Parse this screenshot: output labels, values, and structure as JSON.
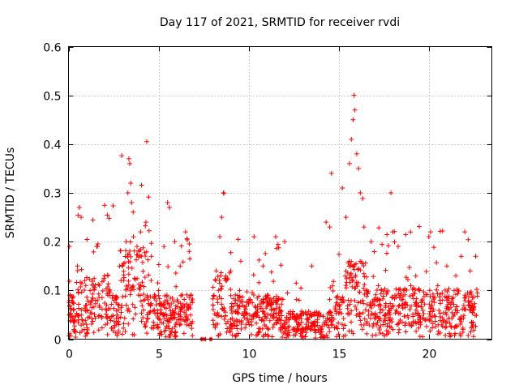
{
  "chart_data": {
    "type": "scatter",
    "title": "Day 117 of 2021, SRMTID for receiver rvdi",
    "xlabel": "GPS time / hours",
    "ylabel": "SRMTID / TECUs",
    "xlim": [
      0,
      23.5
    ],
    "ylim": [
      0,
      0.6
    ],
    "xticks": [
      0,
      5,
      10,
      15,
      20
    ],
    "xtick_labels": [
      "0",
      "5",
      "10",
      "15",
      "20"
    ],
    "yticks": [
      0,
      0.1,
      0.2,
      0.3,
      0.4,
      0.5,
      0.6
    ],
    "ytick_labels": [
      "0",
      "0.1",
      "0.2",
      "0.3",
      "0.4",
      "0.5",
      "0.6"
    ],
    "grid": true,
    "marker": "+",
    "series": [
      {
        "name": "SRMTID",
        "color": "#ff0000",
        "description": "Dense cloud of samples roughly 0 to 0.15 TECU across the day; gap between about 6.9 h and 7.9 h with only zero values; peaks near 3.4 h (~0.37) and 15.8 h (~0.50).",
        "points": [
          [
            0.05,
            0.19
          ],
          [
            0.15,
            0.06
          ],
          [
            0.3,
            0.02
          ],
          [
            0.5,
            0.15
          ],
          [
            0.6,
            0.27
          ],
          [
            0.7,
            0.25
          ],
          [
            0.9,
            0.12
          ],
          [
            1.2,
            0.1
          ],
          [
            1.5,
            0.08
          ],
          [
            1.6,
            0.19
          ],
          [
            2.0,
            0.13
          ],
          [
            2.3,
            0.09
          ],
          [
            2.8,
            0.07
          ],
          [
            3.0,
            0.15
          ],
          [
            3.2,
            0.2
          ],
          [
            3.3,
            0.3
          ],
          [
            3.35,
            0.37
          ],
          [
            3.4,
            0.36
          ],
          [
            3.45,
            0.32
          ],
          [
            3.5,
            0.28
          ],
          [
            3.6,
            0.21
          ],
          [
            3.8,
            0.19
          ],
          [
            4.0,
            0.22
          ],
          [
            4.3,
            0.24
          ],
          [
            4.6,
            0.17
          ],
          [
            5.0,
            0.1
          ],
          [
            5.3,
            0.19
          ],
          [
            5.5,
            0.28
          ],
          [
            5.6,
            0.27
          ],
          [
            5.9,
            0.2
          ],
          [
            6.2,
            0.15
          ],
          [
            6.5,
            0.22
          ],
          [
            6.7,
            0.18
          ],
          [
            7.4,
            0.0
          ],
          [
            7.6,
            0.0
          ],
          [
            7.9,
            0.0
          ],
          [
            8.2,
            0.14
          ],
          [
            8.4,
            0.21
          ],
          [
            8.5,
            0.25
          ],
          [
            8.6,
            0.3
          ],
          [
            9.0,
            0.14
          ],
          [
            9.5,
            0.1
          ],
          [
            10.3,
            0.21
          ],
          [
            10.8,
            0.15
          ],
          [
            11.5,
            0.21
          ],
          [
            12.0,
            0.2
          ],
          [
            12.8,
            0.08
          ],
          [
            13.5,
            0.15
          ],
          [
            14.3,
            0.24
          ],
          [
            14.5,
            0.23
          ],
          [
            14.6,
            0.34
          ],
          [
            15.2,
            0.31
          ],
          [
            15.4,
            0.25
          ],
          [
            15.6,
            0.36
          ],
          [
            15.7,
            0.41
          ],
          [
            15.8,
            0.45
          ],
          [
            15.85,
            0.5
          ],
          [
            15.9,
            0.47
          ],
          [
            16.0,
            0.38
          ],
          [
            16.1,
            0.35
          ],
          [
            16.2,
            0.3
          ],
          [
            16.4,
            0.23
          ],
          [
            16.8,
            0.2
          ],
          [
            17.2,
            0.11
          ],
          [
            17.9,
            0.3
          ],
          [
            18.0,
            0.22
          ],
          [
            18.3,
            0.19
          ],
          [
            19.0,
            0.11
          ],
          [
            19.5,
            0.1
          ],
          [
            20.0,
            0.21
          ],
          [
            20.1,
            0.22
          ],
          [
            20.5,
            0.11
          ],
          [
            21.0,
            0.15
          ],
          [
            21.5,
            0.13
          ],
          [
            21.8,
            0.17
          ],
          [
            22.0,
            0.22
          ],
          [
            22.3,
            0.14
          ],
          [
            22.6,
            0.17
          ]
        ]
      }
    ]
  }
}
